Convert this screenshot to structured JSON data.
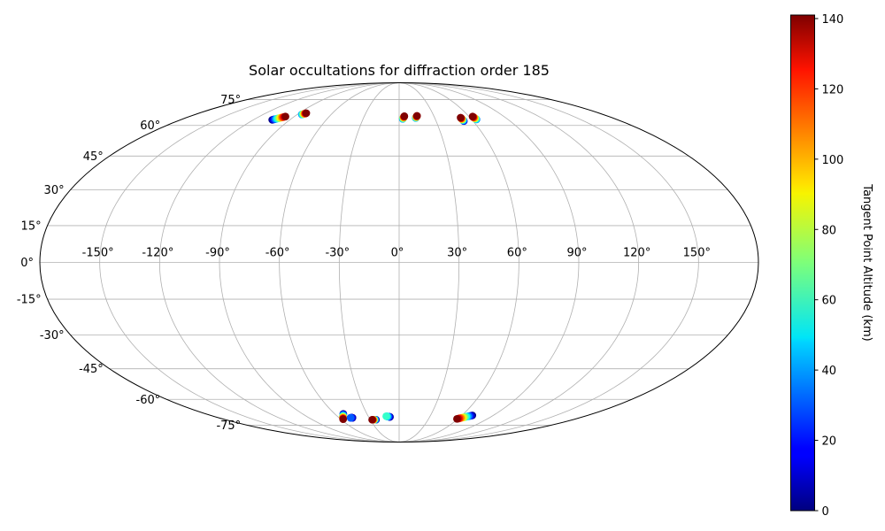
{
  "chart_data": {
    "type": "scatter",
    "projection": "mollweide",
    "title": "Solar occultations for diffraction order 185",
    "grid": true,
    "lon_ticks": [
      -150,
      -120,
      -90,
      -60,
      -30,
      0,
      30,
      60,
      90,
      120,
      150
    ],
    "lon_tick_labels": [
      "-150°",
      "-120°",
      "-90°",
      "-60°",
      "-30°",
      "0°",
      "30°",
      "60°",
      "90°",
      "120°",
      "150°"
    ],
    "lat_ticks": [
      -75,
      -60,
      -45,
      -30,
      -15,
      0,
      15,
      30,
      45,
      60,
      75
    ],
    "lat_tick_labels": [
      "-75°",
      "-60°",
      "-45°",
      "-30°",
      "-15°",
      "0°",
      "15°",
      "30°",
      "45°",
      "60°",
      "75°"
    ],
    "colorbar": {
      "label": "Tangent Point Altitude (km)",
      "colormap": "jet",
      "range": [
        0,
        141
      ],
      "ticks": [
        0,
        20,
        40,
        60,
        80,
        100,
        120,
        140
      ],
      "tick_labels": [
        "0",
        "20",
        "40",
        "60",
        "80",
        "100",
        "120",
        "140"
      ]
    },
    "occultations": [
      {
        "lon_start": -104.5,
        "lat_start": 63.0,
        "lon_end": -97.5,
        "lat_end": 64.8,
        "alt_start": 0,
        "alt_end": 141
      },
      {
        "lon_start": -86.0,
        "lat_start": 66.0,
        "lon_end": -83.5,
        "lat_end": 66.7,
        "alt_start": 35,
        "alt_end": 141
      },
      {
        "lon_start": 3.0,
        "lat_start": 63.5,
        "lon_end": 4.5,
        "lat_end": 65.0,
        "alt_start": 35,
        "alt_end": 141
      },
      {
        "lon_start": 14.0,
        "lat_start": 64.0,
        "lon_end": 15.5,
        "lat_end": 65.2,
        "alt_start": 35,
        "alt_end": 141
      },
      {
        "lon_start": 52.5,
        "lat_start": 62.3,
        "lon_end": 52.0,
        "lat_end": 64.2,
        "alt_start": 10,
        "alt_end": 141
      },
      {
        "lon_start": 64.0,
        "lat_start": 63.2,
        "lon_end": 63.0,
        "lat_end": 64.8,
        "alt_start": 35,
        "alt_end": 141
      },
      {
        "lon_start": -52.0,
        "lat_start": -68.0,
        "lon_end": -57.5,
        "lat_end": -71.2,
        "alt_start": 0,
        "alt_end": 141
      },
      {
        "lon_start": -46.5,
        "lat_start": -70.3,
        "lon_end": -48.5,
        "lat_end": -70.3,
        "alt_start": 0,
        "alt_end": 30
      },
      {
        "lon_start": -24.0,
        "lat_start": -71.5,
        "lon_end": -28.0,
        "lat_end": -71.5,
        "alt_start": 0,
        "alt_end": 141
      },
      {
        "lon_start": -9.0,
        "lat_start": -69.8,
        "lon_end": -12.5,
        "lat_end": -69.4,
        "alt_start": 0,
        "alt_end": 60
      },
      {
        "lon_start": 70.0,
        "lat_start": -68.9,
        "lon_end": 59.0,
        "lat_end": -71.0,
        "alt_start": 0,
        "alt_end": 141
      }
    ]
  }
}
